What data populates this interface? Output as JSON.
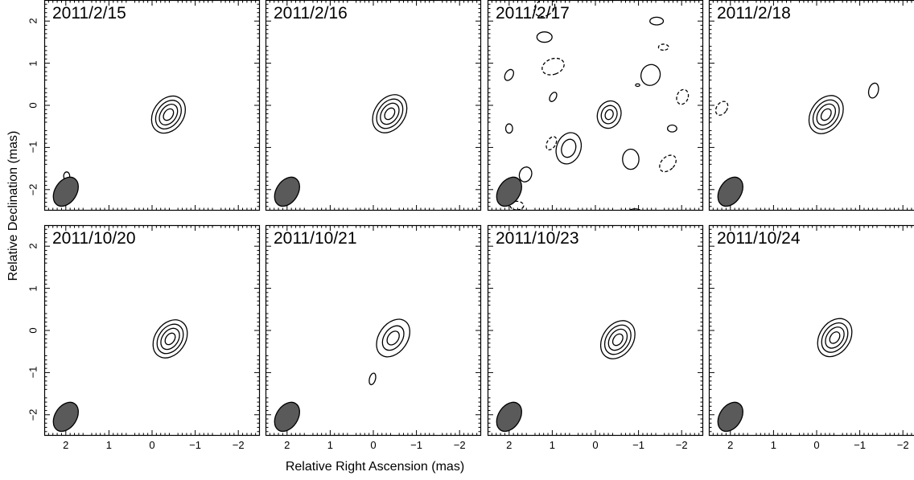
{
  "chart_data": {
    "type": "contour",
    "xlabel": "Relative Right Ascension (mas)",
    "ylabel": "Relative Declination (mas)",
    "xlim": [
      2.5,
      -2.5
    ],
    "ylim": [
      -2.5,
      2.5
    ],
    "x_ticks": [
      "2",
      "1",
      "0",
      "−1",
      "−2"
    ],
    "y_ticks": [
      "−2",
      "−1",
      "0",
      "1",
      "2"
    ],
    "grid": false,
    "colors": {
      "contour": "#000000",
      "beam_fill": "#5a5a5a",
      "frame": "#000000"
    },
    "beam": {
      "x": 2.0,
      "y": -2.05,
      "major": 0.75,
      "minor": 0.5,
      "pa": 33
    },
    "panels": [
      {
        "date": "2011/2/15",
        "contours": [
          {
            "x": -0.38,
            "y": -0.22,
            "major": 0.95,
            "minor": 0.7,
            "pa": 35,
            "dashed": false
          },
          {
            "x": -0.38,
            "y": -0.22,
            "major": 0.74,
            "minor": 0.52,
            "pa": 35,
            "dashed": false
          },
          {
            "x": -0.38,
            "y": -0.22,
            "major": 0.54,
            "minor": 0.36,
            "pa": 35,
            "dashed": false
          },
          {
            "x": -0.38,
            "y": -0.22,
            "major": 0.3,
            "minor": 0.2,
            "pa": 35,
            "dashed": false
          },
          {
            "x": 1.98,
            "y": -1.68,
            "major": 0.2,
            "minor": 0.14,
            "pa": 0,
            "dashed": false
          }
        ]
      },
      {
        "date": "2011/2/16",
        "contours": [
          {
            "x": -0.38,
            "y": -0.2,
            "major": 0.98,
            "minor": 0.7,
            "pa": 35,
            "dashed": false
          },
          {
            "x": -0.38,
            "y": -0.2,
            "major": 0.76,
            "minor": 0.53,
            "pa": 35,
            "dashed": false
          },
          {
            "x": -0.38,
            "y": -0.2,
            "major": 0.55,
            "minor": 0.37,
            "pa": 35,
            "dashed": false
          },
          {
            "x": -0.38,
            "y": -0.2,
            "major": 0.3,
            "minor": 0.2,
            "pa": 35,
            "dashed": false
          }
        ]
      },
      {
        "date": "2011/2/17",
        "contours": [
          {
            "x": -0.32,
            "y": -0.22,
            "major": 0.66,
            "minor": 0.54,
            "pa": 20,
            "dashed": false
          },
          {
            "x": -0.32,
            "y": -0.22,
            "major": 0.44,
            "minor": 0.36,
            "pa": 20,
            "dashed": false
          },
          {
            "x": -0.32,
            "y": -0.22,
            "major": 0.24,
            "minor": 0.18,
            "pa": 20,
            "dashed": false
          },
          {
            "x": 0.62,
            "y": -1.02,
            "major": 0.76,
            "minor": 0.56,
            "pa": 20,
            "dashed": false
          },
          {
            "x": 0.62,
            "y": -1.02,
            "major": 0.44,
            "minor": 0.32,
            "pa": 20,
            "dashed": false
          },
          {
            "x": -1.28,
            "y": 0.72,
            "major": 0.5,
            "minor": 0.44,
            "pa": 20,
            "dashed": false
          },
          {
            "x": -0.82,
            "y": -1.28,
            "major": 0.48,
            "minor": 0.38,
            "pa": 0,
            "dashed": false
          },
          {
            "x": -1.42,
            "y": 2.0,
            "major": 0.32,
            "minor": 0.18,
            "pa": 90,
            "dashed": false
          },
          {
            "x": 1.18,
            "y": 1.62,
            "major": 0.36,
            "minor": 0.24,
            "pa": 90,
            "dashed": false
          },
          {
            "x": 2.0,
            "y": 0.72,
            "major": 0.28,
            "minor": 0.18,
            "pa": 30,
            "dashed": false
          },
          {
            "x": 0.98,
            "y": 0.2,
            "major": 0.24,
            "minor": 0.14,
            "pa": 30,
            "dashed": false
          },
          {
            "x": 2.0,
            "y": -0.55,
            "major": 0.22,
            "minor": 0.16,
            "pa": 0,
            "dashed": false
          },
          {
            "x": -1.78,
            "y": -0.55,
            "major": 0.22,
            "minor": 0.16,
            "pa": 90,
            "dashed": false
          },
          {
            "x": 1.62,
            "y": -1.64,
            "major": 0.36,
            "minor": 0.28,
            "pa": 20,
            "dashed": false
          },
          {
            "x": -0.98,
            "y": 0.48,
            "major": 0.1,
            "minor": 0.06,
            "pa": 90,
            "dashed": false
          },
          {
            "x": -0.92,
            "y": -2.6,
            "major": 0.4,
            "minor": 0.28,
            "pa": 90,
            "dashed": false
          },
          {
            "x": 1.18,
            "y": 2.32,
            "major": 0.52,
            "minor": 0.38,
            "pa": 60,
            "dashed": true
          },
          {
            "x": 0.98,
            "y": 0.92,
            "major": 0.54,
            "minor": 0.36,
            "pa": 70,
            "dashed": true
          },
          {
            "x": -1.58,
            "y": 1.38,
            "major": 0.24,
            "minor": 0.14,
            "pa": 90,
            "dashed": true
          },
          {
            "x": -2.02,
            "y": 0.2,
            "major": 0.36,
            "minor": 0.26,
            "pa": 20,
            "dashed": true
          },
          {
            "x": 1.02,
            "y": -0.9,
            "major": 0.34,
            "minor": 0.2,
            "pa": 30,
            "dashed": true
          },
          {
            "x": -1.68,
            "y": -1.38,
            "major": 0.46,
            "minor": 0.3,
            "pa": 45,
            "dashed": true
          },
          {
            "x": 1.82,
            "y": -2.38,
            "major": 0.32,
            "minor": 0.2,
            "pa": 90,
            "dashed": true
          }
        ]
      },
      {
        "date": "2011/2/18",
        "contours": [
          {
            "x": -0.22,
            "y": -0.22,
            "major": 0.98,
            "minor": 0.7,
            "pa": 35,
            "dashed": false
          },
          {
            "x": -0.22,
            "y": -0.22,
            "major": 0.76,
            "minor": 0.53,
            "pa": 35,
            "dashed": false
          },
          {
            "x": -0.22,
            "y": -0.22,
            "major": 0.55,
            "minor": 0.37,
            "pa": 35,
            "dashed": false
          },
          {
            "x": -0.22,
            "y": -0.22,
            "major": 0.3,
            "minor": 0.2,
            "pa": 35,
            "dashed": false
          },
          {
            "x": -1.32,
            "y": 0.35,
            "major": 0.36,
            "minor": 0.22,
            "pa": 15,
            "dashed": false
          },
          {
            "x": 2.2,
            "y": -0.07,
            "major": 0.36,
            "minor": 0.24,
            "pa": 35,
            "dashed": true
          }
        ]
      },
      {
        "date": "2011/10/20",
        "contours": [
          {
            "x": -0.42,
            "y": -0.2,
            "major": 0.98,
            "minor": 0.7,
            "pa": 35,
            "dashed": false
          },
          {
            "x": -0.42,
            "y": -0.2,
            "major": 0.76,
            "minor": 0.53,
            "pa": 35,
            "dashed": false
          },
          {
            "x": -0.42,
            "y": -0.2,
            "major": 0.55,
            "minor": 0.37,
            "pa": 35,
            "dashed": false
          },
          {
            "x": -0.42,
            "y": -0.2,
            "major": 0.3,
            "minor": 0.2,
            "pa": 35,
            "dashed": false
          }
        ]
      },
      {
        "date": "2011/10/21",
        "contours": [
          {
            "x": -0.46,
            "y": -0.18,
            "major": 0.98,
            "minor": 0.66,
            "pa": 35,
            "dashed": false
          },
          {
            "x": -0.46,
            "y": -0.18,
            "major": 0.64,
            "minor": 0.42,
            "pa": 35,
            "dashed": false
          },
          {
            "x": -0.46,
            "y": -0.18,
            "major": 0.36,
            "minor": 0.24,
            "pa": 35,
            "dashed": false
          },
          {
            "x": 0.02,
            "y": -1.15,
            "major": 0.28,
            "minor": 0.14,
            "pa": 15,
            "dashed": false
          }
        ]
      },
      {
        "date": "2011/10/23",
        "contours": [
          {
            "x": -0.52,
            "y": -0.22,
            "major": 0.98,
            "minor": 0.7,
            "pa": 35,
            "dashed": false
          },
          {
            "x": -0.52,
            "y": -0.22,
            "major": 0.76,
            "minor": 0.53,
            "pa": 35,
            "dashed": false
          },
          {
            "x": -0.52,
            "y": -0.22,
            "major": 0.55,
            "minor": 0.37,
            "pa": 35,
            "dashed": false
          },
          {
            "x": -0.52,
            "y": -0.22,
            "major": 0.3,
            "minor": 0.2,
            "pa": 35,
            "dashed": false
          }
        ]
      },
      {
        "date": "2011/10/24",
        "contours": [
          {
            "x": -0.42,
            "y": -0.17,
            "major": 0.98,
            "minor": 0.7,
            "pa": 35,
            "dashed": false
          },
          {
            "x": -0.42,
            "y": -0.17,
            "major": 0.76,
            "minor": 0.53,
            "pa": 35,
            "dashed": false
          },
          {
            "x": -0.42,
            "y": -0.17,
            "major": 0.55,
            "minor": 0.37,
            "pa": 35,
            "dashed": false
          },
          {
            "x": -0.42,
            "y": -0.17,
            "major": 0.3,
            "minor": 0.2,
            "pa": 35,
            "dashed": false
          }
        ]
      }
    ]
  }
}
